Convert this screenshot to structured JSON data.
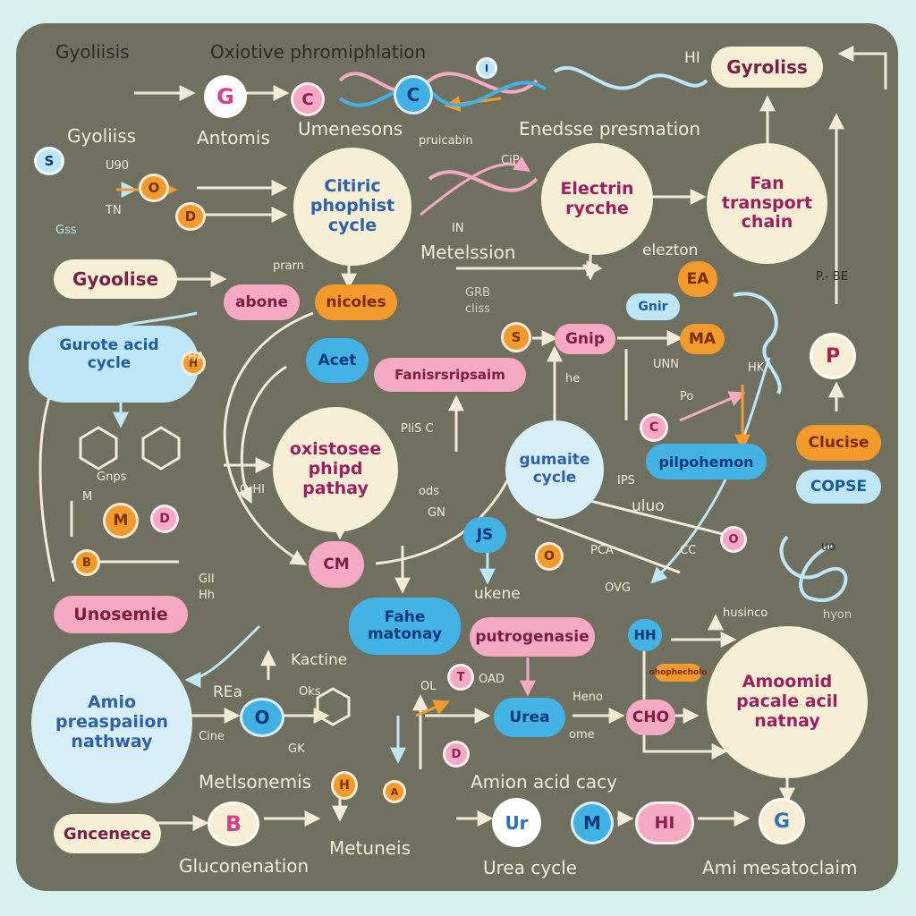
{
  "colors": {
    "background": "#d9f1ee",
    "board": "#6f7060",
    "cream": "#f7eed6",
    "pink": "#f6a9c2",
    "blue": "#41b0e4",
    "light_blue": "#bfe6f6",
    "orange": "#f39a2c",
    "arrow": "#f3ead7"
  },
  "header": {
    "t1": "Gyoliisis",
    "t2": "Oxiotive phromiphlation",
    "t3": "Gyoliiss",
    "t4": "Antomis",
    "t5": "Umenesons",
    "t6": "Enedsse presmation",
    "t7": "Gyroliss",
    "t8": "HI"
  },
  "hubs": {
    "citric": "Citiric phophist cycle",
    "electrin": "Electrin rycche",
    "fan": "Fan transport chain",
    "oxistosee": "oxistosee phipd pathay",
    "gumaite": "gumaite cycle",
    "amio": "Amio preaspaiion nathway",
    "amoomid": "Amoomid pacale acil natnay"
  },
  "pills": {
    "gyoolise": "Gyoolise",
    "abone": "abone",
    "nicoles": "nicoles",
    "acet": "Acet",
    "fanisp": "Fanisrsripsaim",
    "pilpohemon": "pilpohemon",
    "clucise": "Clucise",
    "copse": "COPSE",
    "unosemie": "Unosemie",
    "fahe": "Fahe matonay",
    "putrogenasie": "putrogenasie",
    "urea": "Urea",
    "gncenece": "Gncenece",
    "cho": "CHO",
    "ea": "EA",
    "gnip": "Gnip",
    "ma": "MA",
    "gnir": "Gnir",
    "cm": "CM",
    "js": "JS",
    "hh": "HH"
  },
  "cloud": {
    "title": "Gurote acid cycle"
  },
  "labels": {
    "pruicabin": "pruicabin",
    "clp": "CiP",
    "in": "IN",
    "metelssion": "Metelssion",
    "elezton": "elezton",
    "prarn": "prarn",
    "gnps": "Gnps",
    "m": "M",
    "o": "O",
    "hi": "HI",
    "gii": "GII",
    "hh2": "Hh",
    "plis": "PliS C",
    "ods": "ods",
    "gn": "GN",
    "ukene": "ukene",
    "he": "he",
    "unn": "UNN",
    "po": "Po",
    "ips": "IPS",
    "uluo": "uluo",
    "pca": "PCA",
    "cc": "CC",
    "ovg": "OVG",
    "hk": "HK",
    "pbe": "P.- BE",
    "kacine": "Kactine",
    "rea": "REa",
    "cine": "Cine",
    "oks": "Oks",
    "gk": "GK",
    "ol": "OL",
    "oad": "OAD",
    "heno": "Heno",
    "ome": "ome",
    "metlsonemis": "Metlsonemis",
    "amion": "Amion acid cacy",
    "uo": "uo",
    "husinco": "husinco",
    "hyon": "hyon",
    "gluconenation": "Gluconenation",
    "metuneis": "Metuneis",
    "ureacycle": "Urea cycle",
    "ami": "Ami mesatoclaim",
    "upo": "U90",
    "tn": "TN",
    "gss": "Gss",
    "grb": "GRB",
    "cliss": "cliss",
    "ohh": "O HI",
    "ha": "HA",
    "orange_tag": "ohophecholo"
  },
  "nodes": {
    "g_top": "G",
    "c1": "C",
    "c2": "C",
    "d1": "D",
    "o1": "O",
    "s1": "S",
    "s2": "S",
    "m1": "M",
    "d2": "D",
    "b1": "B",
    "h1": "H",
    "o2": "O",
    "b2": "B",
    "ur": "Ur",
    "m2": "M",
    "hi2": "HI",
    "g2": "G",
    "p": "P",
    "d3": "D",
    "t1": "T",
    "o3": "O",
    "i1": "I",
    "c3": "C",
    "o4": "O",
    "a1": "A",
    "h2": "H"
  }
}
